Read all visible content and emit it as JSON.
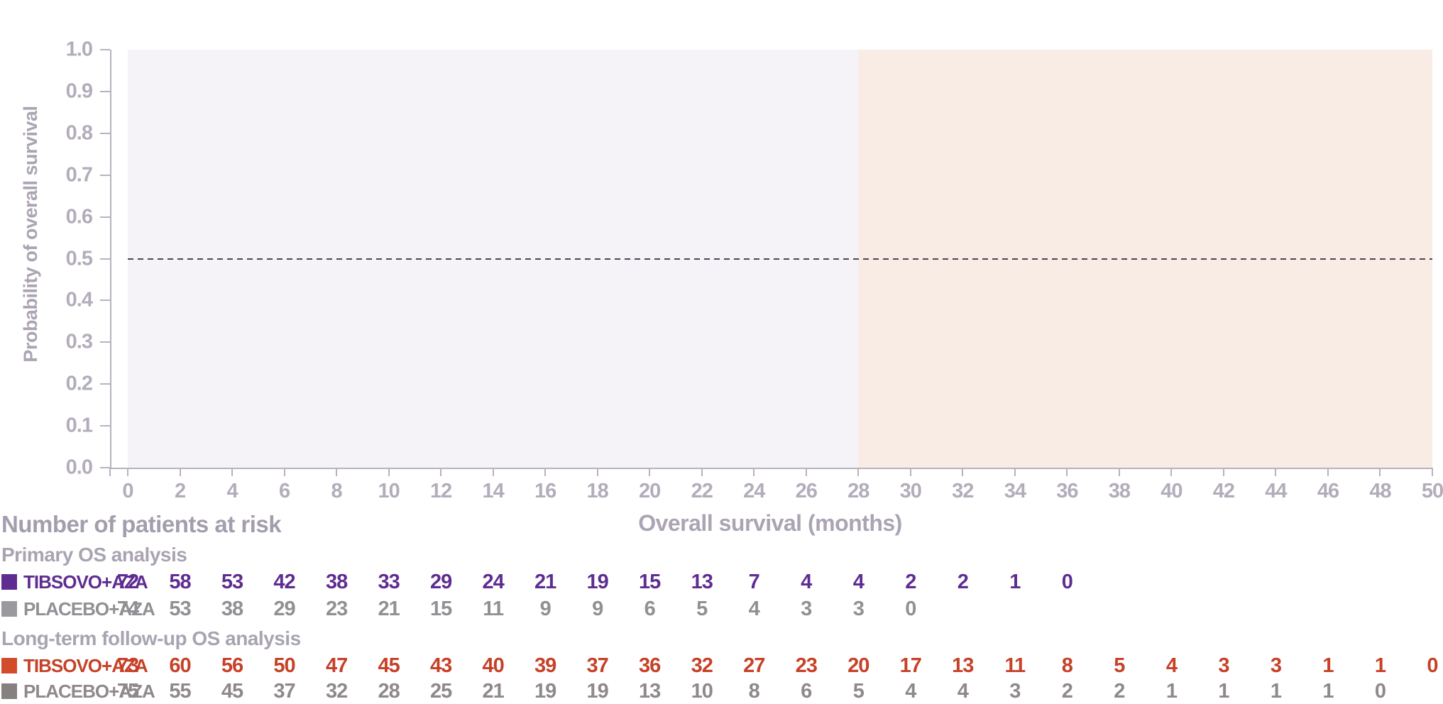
{
  "figure": {
    "y_axis_title": "Probability of overall survival",
    "x_axis_title": "Overall survival (months)",
    "y_ticks": [
      "1.0",
      "0.9",
      "0.8",
      "0.7",
      "0.6",
      "0.5",
      "0.4",
      "0.3",
      "0.2",
      "0.1",
      "0.0"
    ],
    "x_ticks": [
      0,
      2,
      4,
      6,
      8,
      10,
      12,
      14,
      16,
      18,
      20,
      22,
      24,
      26,
      28,
      30,
      32,
      34,
      36,
      38,
      40,
      42,
      44,
      46,
      48,
      50
    ],
    "reference_line_probability": 0.5,
    "regions": [
      {
        "name": "primary-analysis-period",
        "from_month": 0,
        "to_month": 28,
        "color": "#f5f2f8"
      },
      {
        "name": "long-term-follow-up-period",
        "from_month": 28,
        "to_month": 50,
        "color": "#f9ece5"
      }
    ],
    "axis_color": "#b8b2be",
    "dashed_line_color": "#4c4650"
  },
  "risk_table": {
    "title": "Number of patients at risk",
    "sections": [
      {
        "label": "Primary OS analysis",
        "rows": [
          {
            "name": "TIBSOVO+AZA",
            "color": "#5f2d91",
            "swatch_color": "#5f2d91",
            "values": [
              72,
              58,
              53,
              42,
              38,
              33,
              29,
              24,
              21,
              19,
              15,
              13,
              7,
              4,
              4,
              2,
              2,
              1,
              0
            ]
          },
          {
            "name": "PLACEBO+AZA",
            "color": "#909095",
            "swatch_color": "#9a9a9e",
            "values": [
              74,
              53,
              38,
              29,
              23,
              21,
              15,
              11,
              9,
              9,
              6,
              5,
              4,
              3,
              3,
              0
            ]
          }
        ]
      },
      {
        "label": "Long-term follow-up OS analysis",
        "rows": [
          {
            "name": "TIBSOVO+AZA",
            "color": "#c64127",
            "swatch_color": "#d24c2b",
            "values": [
              73,
              60,
              56,
              50,
              47,
              45,
              43,
              40,
              39,
              37,
              36,
              32,
              27,
              23,
              20,
              17,
              13,
              11,
              8,
              5,
              4,
              3,
              3,
              1,
              1,
              0
            ]
          },
          {
            "name": "PLACEBO+AZA",
            "color": "#8f898b",
            "swatch_color": "#868080",
            "values": [
              75,
              55,
              45,
              37,
              32,
              28,
              25,
              21,
              19,
              19,
              13,
              10,
              8,
              6,
              5,
              4,
              4,
              3,
              2,
              2,
              1,
              1,
              1,
              1,
              0
            ]
          }
        ]
      }
    ]
  },
  "chart_data": {
    "type": "table",
    "title": "Number of patients at risk",
    "xlabel": "Overall survival (months)",
    "ylabel": "Probability of overall survival",
    "x_range": [
      0,
      50
    ],
    "y_range": [
      0.0,
      1.0
    ],
    "grid": false,
    "reference_line": {
      "axis": "y",
      "value": 0.5,
      "style": "dashed"
    },
    "shaded_regions": [
      {
        "label": "primary analysis",
        "x_from": 0,
        "x_to": 28,
        "color": "#f5f2f8"
      },
      {
        "label": "long-term follow-up",
        "x_from": 28,
        "x_to": 50,
        "color": "#f9ece5"
      }
    ],
    "x": [
      0,
      2,
      4,
      6,
      8,
      10,
      12,
      14,
      16,
      18,
      20,
      22,
      24,
      26,
      28,
      30,
      32,
      34,
      36,
      38,
      40,
      42,
      44,
      46,
      48,
      50
    ],
    "series": [
      {
        "name": "Primary OS analysis — TIBSOVO+AZA",
        "color": "#5f2d91",
        "values": [
          72,
          58,
          53,
          42,
          38,
          33,
          29,
          24,
          21,
          19,
          15,
          13,
          7,
          4,
          4,
          2,
          2,
          1,
          0
        ]
      },
      {
        "name": "Primary OS analysis — PLACEBO+AZA",
        "color": "#909095",
        "values": [
          74,
          53,
          38,
          29,
          23,
          21,
          15,
          11,
          9,
          9,
          6,
          5,
          4,
          3,
          3,
          0
        ]
      },
      {
        "name": "Long-term follow-up OS analysis — TIBSOVO+AZA",
        "color": "#c64127",
        "values": [
          73,
          60,
          56,
          50,
          47,
          45,
          43,
          40,
          39,
          37,
          36,
          32,
          27,
          23,
          20,
          17,
          13,
          11,
          8,
          5,
          4,
          3,
          3,
          1,
          1,
          0
        ]
      },
      {
        "name": "Long-term follow-up OS analysis — PLACEBO+AZA",
        "color": "#8f898b",
        "values": [
          75,
          55,
          45,
          37,
          32,
          28,
          25,
          21,
          19,
          19,
          13,
          10,
          8,
          6,
          5,
          4,
          4,
          3,
          2,
          2,
          1,
          1,
          1,
          1,
          0
        ]
      }
    ]
  }
}
